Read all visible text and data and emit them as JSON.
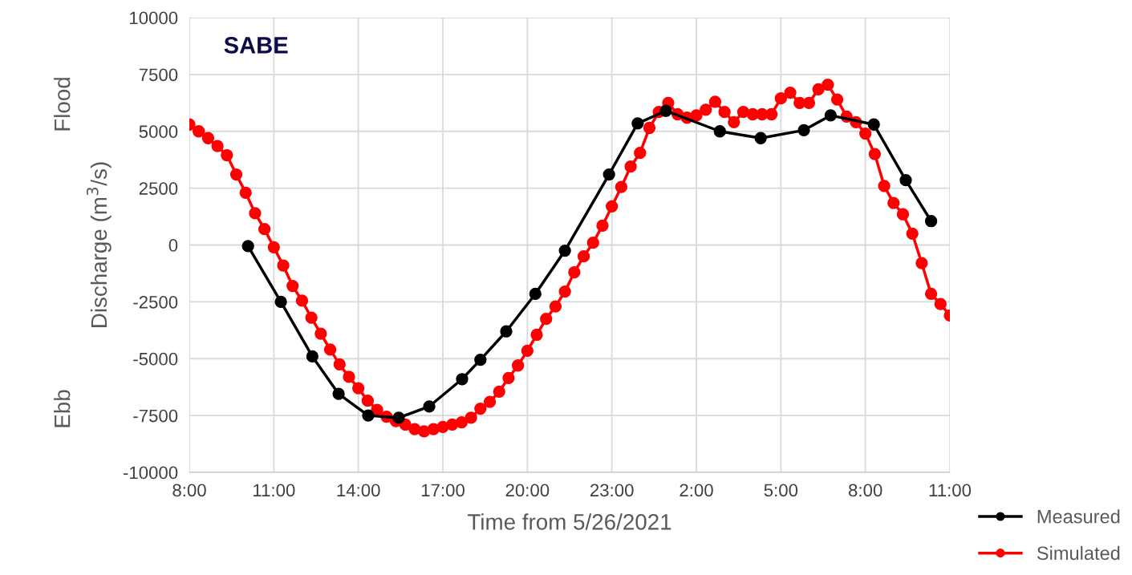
{
  "chart_data": {
    "type": "line",
    "title": "SABE",
    "xlabel": "Time from 5/26/2021",
    "ylabel": "Discharge (m$^{3}$/s)",
    "annotations": [
      "Flood",
      "Ebb"
    ],
    "xlim": [
      "2021-05-26T08:00",
      "2021-05-27T11:00"
    ],
    "xticks": [
      {
        "value": "2021-05-26T08:00",
        "label": "8:00"
      },
      {
        "value": "2021-05-26T11:00",
        "label": "11:00"
      },
      {
        "value": "2021-05-26T14:00",
        "label": "14:00"
      },
      {
        "value": "2021-05-26T17:00",
        "label": "17:00"
      },
      {
        "value": "2021-05-26T20:00",
        "label": "20:00"
      },
      {
        "value": "2021-05-26T23:00",
        "label": "23:00"
      },
      {
        "value": "2021-05-27T02:00",
        "label": "2:00"
      },
      {
        "value": "2021-05-27T05:00",
        "label": "5:00"
      },
      {
        "value": "2021-05-27T08:00",
        "label": "8:00"
      },
      {
        "value": "2021-05-27T11:00",
        "label": "11:00"
      }
    ],
    "ylim": [
      -10000,
      10000
    ],
    "yticks": [
      -10000,
      -7500,
      -5000,
      -2500,
      0,
      2500,
      5000,
      7500,
      10000
    ],
    "grid": true,
    "legend": "bottom right",
    "marker": "circle",
    "line_style": "solid",
    "series": [
      {
        "name": "Measured",
        "color": "#000000",
        "x": [
          "2021-05-26T10:05",
          "2021-05-26T11:15",
          "2021-05-26T12:22",
          "2021-05-26T13:18",
          "2021-05-26T14:21",
          "2021-05-26T15:26",
          "2021-05-26T16:31",
          "2021-05-26T17:41",
          "2021-05-26T18:20",
          "2021-05-26T19:15",
          "2021-05-26T20:17",
          "2021-05-26T21:20",
          "2021-05-26T22:54",
          "2021-05-26T23:55",
          "2021-05-27T00:55",
          "2021-05-27T02:50",
          "2021-05-27T04:17",
          "2021-05-27T05:49",
          "2021-05-27T06:46",
          "2021-05-27T08:18",
          "2021-05-27T09:26",
          "2021-05-27T10:20"
        ],
        "values": [
          -50,
          -2500,
          -4900,
          -6550,
          -7500,
          -7600,
          -7100,
          -5900,
          -5050,
          -3800,
          -2150,
          -250,
          3100,
          5350,
          5900,
          5000,
          4700,
          5050,
          5700,
          5300,
          2850,
          1050
        ]
      },
      {
        "name": "Simulated",
        "color": "#ff0000",
        "x": [
          "2021-05-26T08:00",
          "2021-05-26T08:20",
          "2021-05-26T08:40",
          "2021-05-26T09:00",
          "2021-05-26T09:20",
          "2021-05-26T09:40",
          "2021-05-26T10:00",
          "2021-05-26T10:20",
          "2021-05-26T10:40",
          "2021-05-26T11:00",
          "2021-05-26T11:20",
          "2021-05-26T11:40",
          "2021-05-26T12:00",
          "2021-05-26T12:20",
          "2021-05-26T12:40",
          "2021-05-26T13:00",
          "2021-05-26T13:20",
          "2021-05-26T13:40",
          "2021-05-26T14:00",
          "2021-05-26T14:20",
          "2021-05-26T14:40",
          "2021-05-26T15:00",
          "2021-05-26T15:20",
          "2021-05-26T15:40",
          "2021-05-26T16:00",
          "2021-05-26T16:20",
          "2021-05-26T16:40",
          "2021-05-26T17:00",
          "2021-05-26T17:20",
          "2021-05-26T17:40",
          "2021-05-26T18:00",
          "2021-05-26T18:20",
          "2021-05-26T18:40",
          "2021-05-26T19:00",
          "2021-05-26T19:20",
          "2021-05-26T19:40",
          "2021-05-26T20:00",
          "2021-05-26T20:20",
          "2021-05-26T20:40",
          "2021-05-26T21:00",
          "2021-05-26T21:20",
          "2021-05-26T21:40",
          "2021-05-26T22:00",
          "2021-05-26T22:20",
          "2021-05-26T22:40",
          "2021-05-26T23:00",
          "2021-05-26T23:20",
          "2021-05-26T23:40",
          "2021-05-27T00:00",
          "2021-05-27T00:20",
          "2021-05-27T00:40",
          "2021-05-27T01:00",
          "2021-05-27T01:20",
          "2021-05-27T01:40",
          "2021-05-27T02:00",
          "2021-05-27T02:20",
          "2021-05-27T02:40",
          "2021-05-27T03:00",
          "2021-05-27T03:20",
          "2021-05-27T03:40",
          "2021-05-27T04:00",
          "2021-05-27T04:20",
          "2021-05-27T04:40",
          "2021-05-27T05:00",
          "2021-05-27T05:20",
          "2021-05-27T05:40",
          "2021-05-27T06:00",
          "2021-05-27T06:20",
          "2021-05-27T06:40",
          "2021-05-27T07:00",
          "2021-05-27T07:20",
          "2021-05-27T07:40",
          "2021-05-27T08:00",
          "2021-05-27T08:20",
          "2021-05-27T08:40",
          "2021-05-27T09:00",
          "2021-05-27T09:20",
          "2021-05-27T09:40",
          "2021-05-27T10:00",
          "2021-05-27T10:20",
          "2021-05-27T10:40",
          "2021-05-27T11:00"
        ],
        "values": [
          5300,
          5000,
          4700,
          4350,
          3950,
          3100,
          2300,
          1400,
          700,
          -100,
          -900,
          -1800,
          -2450,
          -3200,
          -3900,
          -4600,
          -5250,
          -5800,
          -6300,
          -6850,
          -7250,
          -7550,
          -7750,
          -7900,
          -8100,
          -8200,
          -8100,
          -8000,
          -7900,
          -7800,
          -7600,
          -7200,
          -6900,
          -6450,
          -5850,
          -5300,
          -4650,
          -3950,
          -3250,
          -2700,
          -2050,
          -1200,
          -500,
          100,
          850,
          1700,
          2550,
          3450,
          4050,
          5150,
          5850,
          6250,
          5750,
          5600,
          5700,
          5950,
          6300,
          5850,
          5400,
          5850,
          5750,
          5750,
          5750,
          6450,
          6700,
          6250,
          6250,
          6850,
          7050,
          6400,
          5650,
          5400,
          4900,
          4000,
          2600,
          1850,
          1350,
          500,
          -800,
          -2150,
          -2600,
          -3100
        ]
      }
    ]
  }
}
